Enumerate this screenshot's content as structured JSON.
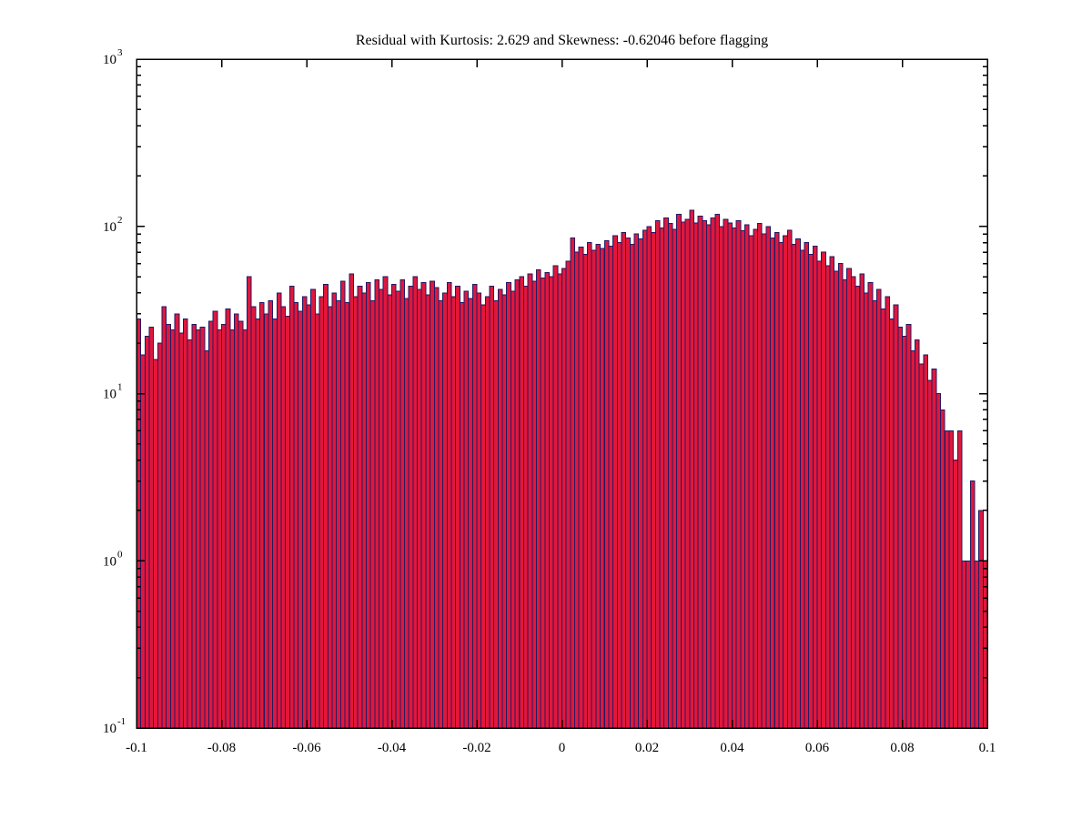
{
  "chart_data": {
    "type": "bar",
    "subtype": "histogram",
    "title": "Residual with Kurtosis: 2.629 and Skewness: -0.62046 before flagging",
    "xlabel": "",
    "ylabel": "",
    "xlim": [
      -0.1,
      0.1
    ],
    "ylim": [
      0.1,
      1000
    ],
    "y_scale": "log",
    "grid": false,
    "legend": null,
    "x_ticks": [
      -0.1,
      -0.08,
      -0.06,
      -0.04,
      -0.02,
      0,
      0.02,
      0.04,
      0.06,
      0.08,
      0.1
    ],
    "x_tick_labels": [
      "-0.1",
      "-0.08",
      "-0.06",
      "-0.04",
      "-0.02",
      "0",
      "0.02",
      "0.04",
      "0.06",
      "0.08",
      "0.1"
    ],
    "y_tick_exponents": [
      -1,
      0,
      1,
      2,
      3
    ],
    "y_tick_base": "10",
    "bin_start": -0.1,
    "bin_width": 0.001,
    "values": [
      28,
      17,
      22,
      25,
      16,
      20,
      33,
      26,
      24,
      30,
      23,
      28,
      21,
      26,
      24,
      25,
      18,
      27,
      31,
      24,
      26,
      32,
      24,
      30,
      27,
      24,
      50,
      33,
      28,
      35,
      30,
      36,
      28,
      40,
      33,
      29,
      44,
      35,
      31,
      38,
      34,
      42,
      30,
      38,
      45,
      33,
      40,
      36,
      47,
      35,
      52,
      38,
      44,
      40,
      46,
      36,
      48,
      42,
      50,
      39,
      45,
      41,
      48,
      37,
      44,
      50,
      42,
      46,
      39,
      47,
      43,
      36,
      40,
      46,
      38,
      44,
      35,
      41,
      37,
      45,
      40,
      34,
      38,
      44,
      36,
      42,
      39,
      46,
      41,
      48,
      50,
      44,
      52,
      47,
      55,
      49,
      53,
      50,
      58,
      52,
      56,
      62,
      85,
      70,
      75,
      68,
      80,
      72,
      78,
      74,
      82,
      76,
      88,
      80,
      92,
      85,
      78,
      90,
      84,
      95,
      100,
      92,
      108,
      98,
      112,
      104,
      96,
      118,
      106,
      110,
      125,
      105,
      115,
      108,
      102,
      112,
      118,
      100,
      110,
      105,
      98,
      108,
      94,
      102,
      88,
      96,
      104,
      90,
      100,
      85,
      92,
      80,
      88,
      95,
      78,
      84,
      72,
      80,
      68,
      76,
      62,
      70,
      58,
      66,
      54,
      60,
      48,
      56,
      50,
      44,
      52,
      40,
      46,
      36,
      42,
      32,
      38,
      28,
      34,
      25,
      22,
      26,
      18,
      21,
      15,
      17,
      12,
      14,
      10,
      8,
      6,
      6,
      4,
      6,
      1,
      1,
      3,
      1,
      2,
      1
    ],
    "colors": {
      "bar_fill": "#e0173c",
      "bar_edge": "#231a63",
      "axis": "#000000",
      "background": "#ffffff"
    }
  }
}
